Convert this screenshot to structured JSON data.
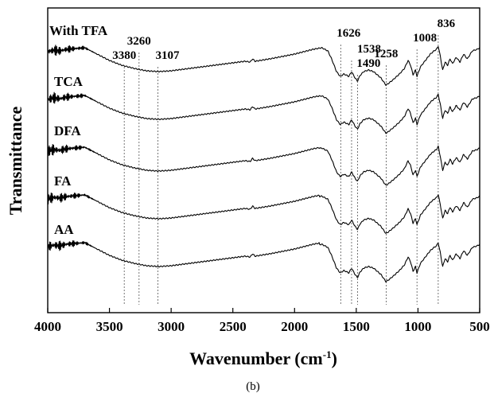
{
  "chart_data": {
    "type": "line",
    "title": "",
    "xlabel": "Wavenumber (cm",
    "xlabel_sup": "-1",
    "xlabel_close": ")",
    "ylabel": "Transmittance",
    "caption": "(b)",
    "xlim": [
      4000,
      500
    ],
    "x_reversed": true,
    "y_ticks_shown": false,
    "grid": false,
    "x_ticks": [
      "4000",
      "3500",
      "3000",
      "2500",
      "2000",
      "1500",
      "1000",
      "500"
    ],
    "x_tick_values": [
      4000,
      3500,
      3000,
      2500,
      2000,
      1500,
      1000,
      500
    ],
    "peak_markers": [
      {
        "label": "3380",
        "value": 3380
      },
      {
        "label": "3260",
        "value": 3260
      },
      {
        "label": "3107",
        "value": 3107
      },
      {
        "label": "1626",
        "value": 1626
      },
      {
        "label": "1538",
        "value": 1538
      },
      {
        "label": "1490",
        "value": 1490
      },
      {
        "label": "1258",
        "value": 1258
      },
      {
        "label": "1008",
        "value": 1008
      },
      {
        "label": "836",
        "value": 836
      }
    ],
    "series": [
      {
        "name": "With TFA"
      },
      {
        "name": "TCA"
      },
      {
        "name": "DFA"
      },
      {
        "name": "FA"
      },
      {
        "name": "AA"
      }
    ]
  }
}
